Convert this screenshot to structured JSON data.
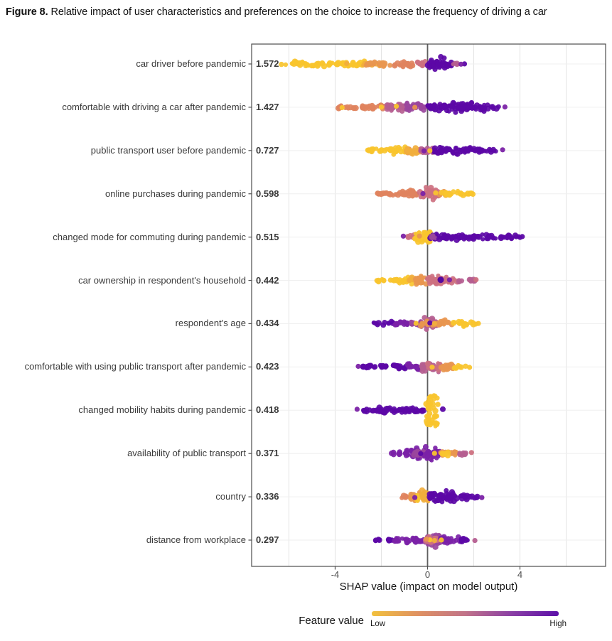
{
  "title": {
    "prefix": "Figure 8.",
    "text": " Relative impact of user characteristics and preferences on the choice to increase the frequency of driving a car"
  },
  "chart_data": {
    "type": "scatter",
    "subtype": "shap-beeswarm",
    "xlabel": "SHAP value (impact on model output)",
    "x_ticks": [
      "-4",
      "0",
      "4"
    ],
    "x_tick_values": [
      -4,
      0,
      4
    ],
    "x_range": [
      -7.6,
      7.7
    ],
    "zero_line": 0,
    "grid": true,
    "features": [
      {
        "label": "car driver before pandemic",
        "importance": "1.572",
        "segments": [
          [
            -6.35,
            -4.4,
            3.5,
            5,
            "YEL"
          ],
          [
            -4.4,
            -2.7,
            5,
            5.5,
            "YEL"
          ],
          [
            -2.85,
            -1.95,
            4,
            4,
            "YL2"
          ],
          [
            -2.7,
            -1.6,
            5,
            5,
            "ORN"
          ],
          [
            -1.6,
            -0.6,
            5,
            5,
            "SAL"
          ],
          [
            -0.6,
            -0.05,
            5,
            4.5,
            "PNK"
          ],
          [
            0.0,
            0.35,
            6,
            13,
            "PUR"
          ],
          [
            0.35,
            0.75,
            13,
            11,
            "PUR"
          ],
          [
            0.75,
            1.1,
            10,
            5,
            "PUR"
          ],
          [
            1.05,
            1.35,
            4,
            3,
            "MAU"
          ]
        ],
        "outliers": [
          [
            1.6,
            "PUR"
          ],
          [
            1.45,
            "PU2"
          ],
          [
            -3.5,
            "YL2"
          ]
        ]
      },
      {
        "label": "comfortable with driving a car after pandemic",
        "importance": "1.427",
        "segments": [
          [
            -3.85,
            -3.0,
            3,
            4.5,
            "SAL"
          ],
          [
            -3.0,
            -1.9,
            4.5,
            6,
            "SAL"
          ],
          [
            -1.9,
            -0.9,
            6,
            8.5,
            "MAU"
          ],
          [
            -0.9,
            -0.05,
            8.5,
            7,
            "MAG"
          ],
          [
            0.0,
            1.0,
            8,
            11,
            "PUR"
          ],
          [
            1.0,
            2.3,
            11,
            8,
            "PUR"
          ],
          [
            2.3,
            3.15,
            7,
            3,
            "PUR"
          ]
        ],
        "outliers": [
          [
            3.35,
            "PU2"
          ],
          [
            -3.7,
            "YEL"
          ],
          [
            -2.0,
            "YEL"
          ],
          [
            -0.55,
            "ORN"
          ],
          [
            -1.35,
            "YEL"
          ]
        ]
      },
      {
        "label": "public transport user before pandemic",
        "importance": "0.727",
        "segments": [
          [
            -2.6,
            -1.7,
            3,
            6,
            "YEL"
          ],
          [
            -1.7,
            -0.9,
            6,
            9,
            "YEL"
          ],
          [
            -1.0,
            -0.3,
            5,
            5,
            "ORN"
          ],
          [
            -0.9,
            -0.35,
            8,
            6,
            "YL2"
          ],
          [
            -0.35,
            0.25,
            6,
            6,
            "MAU"
          ],
          [
            0.25,
            1.3,
            7,
            8,
            "PUR"
          ],
          [
            1.3,
            2.3,
            8,
            6,
            "PUR"
          ],
          [
            2.3,
            3.1,
            5,
            2.5,
            "PUR"
          ]
        ],
        "outliers": [
          [
            3.25,
            "PU2"
          ],
          [
            0.1,
            "YEL"
          ],
          [
            -0.15,
            "PU2"
          ]
        ]
      },
      {
        "label": "online purchases during pandemic",
        "importance": "0.598",
        "segments": [
          [
            -2.2,
            -1.3,
            3,
            6,
            "SAL"
          ],
          [
            -1.3,
            -0.35,
            6,
            9,
            "SAL"
          ],
          [
            -0.35,
            0.15,
            9,
            12,
            "PNK"
          ],
          [
            0.15,
            0.6,
            12,
            8,
            "PNK"
          ],
          [
            0.5,
            0.95,
            5,
            5,
            "ORN"
          ],
          [
            0.6,
            1.15,
            6,
            5,
            "YEL"
          ],
          [
            1.15,
            2.15,
            5,
            3,
            "YEL"
          ]
        ],
        "outliers": [
          [
            -0.2,
            "PU2"
          ],
          [
            0.35,
            "YEL"
          ]
        ]
      },
      {
        "label": "changed mode for commuting during pandemic",
        "importance": "0.515",
        "segments": [
          [
            -0.88,
            -0.55,
            3,
            5,
            "PNK"
          ],
          [
            -0.55,
            -0.15,
            8,
            17,
            "YEL"
          ],
          [
            -0.15,
            0.12,
            17,
            14,
            "YEL"
          ],
          [
            0.12,
            0.5,
            8,
            6,
            "PUR"
          ],
          [
            0.18,
            0.45,
            5,
            5,
            "MAG"
          ],
          [
            0.5,
            2.6,
            6,
            6,
            "PUR"
          ],
          [
            2.6,
            4.05,
            5,
            3.5,
            "PUR"
          ]
        ],
        "outliers": [
          [
            -1.05,
            "PU2"
          ],
          [
            4.1,
            "PUR"
          ],
          [
            -0.35,
            "ORN"
          ]
        ]
      },
      {
        "label": "car ownership in respondent's household",
        "importance": "0.442",
        "segments": [
          [
            -2.2,
            -1.35,
            2.5,
            4.5,
            "YEL"
          ],
          [
            -1.35,
            -0.55,
            4.5,
            8,
            "YEL"
          ],
          [
            -0.8,
            -0.2,
            6,
            6,
            "YL2"
          ],
          [
            -0.55,
            -0.05,
            8,
            10,
            "ORN"
          ],
          [
            -0.05,
            0.55,
            11,
            9,
            "PNK"
          ],
          [
            0.55,
            1.3,
            7,
            4.5,
            "PNK"
          ],
          [
            1.3,
            2.05,
            4,
            2.5,
            "MAU"
          ]
        ],
        "outliers": [
          [
            0.57,
            "VIO",
            4.5
          ],
          [
            0.95,
            "PU2"
          ],
          [
            2.1,
            "PNK"
          ]
        ]
      },
      {
        "label": "respondent's age",
        "importance": "0.434",
        "segments": [
          [
            -2.4,
            -1.5,
            3,
            4,
            "PUR"
          ],
          [
            -1.5,
            -0.75,
            4,
            6,
            "PU2"
          ],
          [
            -0.75,
            -0.2,
            6,
            10,
            "MAG"
          ],
          [
            -0.2,
            0.45,
            11,
            11,
            "MAU"
          ],
          [
            -0.3,
            0.4,
            6,
            6,
            "ORN"
          ],
          [
            0.45,
            1.05,
            9,
            7,
            "ORN"
          ],
          [
            1.05,
            2.1,
            6,
            3,
            "YEL"
          ]
        ],
        "outliers": [
          [
            2.2,
            "YEL"
          ],
          [
            0.1,
            "PUR"
          ],
          [
            -0.5,
            "YEL"
          ],
          [
            0.3,
            "YL2"
          ]
        ]
      },
      {
        "label": "comfortable with using public transport after pandemic",
        "importance": "0.423",
        "segments": [
          [
            -2.95,
            -2.1,
            3,
            4.5,
            "PUR"
          ],
          [
            -2.1,
            -0.9,
            4.5,
            6,
            "PUR"
          ],
          [
            -0.9,
            -0.25,
            6,
            7,
            "PU2"
          ],
          [
            -0.25,
            0.5,
            9,
            13,
            "MAU"
          ],
          [
            0.0,
            0.55,
            7,
            7,
            "PNK"
          ],
          [
            0.5,
            1.15,
            9,
            6,
            "ORN"
          ],
          [
            1.15,
            1.7,
            5,
            3,
            "YEL"
          ]
        ],
        "outliers": [
          [
            1.82,
            "YEL"
          ],
          [
            -3.0,
            "PU2"
          ],
          [
            0.2,
            "YEL"
          ]
        ]
      },
      {
        "label": "changed mobility habits during pandemic",
        "importance": "0.418",
        "segments": [
          [
            -2.95,
            -2.2,
            3,
            4.5,
            "PUR"
          ],
          [
            -2.2,
            -0.7,
            5,
            7,
            "PUR"
          ],
          [
            -0.7,
            -0.12,
            6,
            5,
            "PUR"
          ],
          [
            -0.08,
            0.45,
            22,
            23,
            "YEL",
            "u"
          ]
        ],
        "outliers": [
          [
            0.66,
            "PUR",
            4
          ],
          [
            -3.05,
            "PU2"
          ]
        ]
      },
      {
        "label": "availability of public transport",
        "importance": "0.371",
        "segments": [
          [
            -1.6,
            -0.9,
            3,
            6,
            "PU2"
          ],
          [
            -0.9,
            -0.15,
            8,
            13,
            "PU2"
          ],
          [
            -0.6,
            0.1,
            7,
            7,
            "MAG"
          ],
          [
            -0.15,
            0.55,
            13,
            9,
            "PU2"
          ],
          [
            0.55,
            1.25,
            6,
            5,
            "ORN"
          ],
          [
            0.6,
            1.0,
            4,
            4,
            "YEL"
          ],
          [
            1.25,
            1.8,
            4,
            3,
            "MAU"
          ]
        ],
        "outliers": [
          [
            1.9,
            "PNK"
          ],
          [
            0.3,
            "YEL"
          ],
          [
            -0.3,
            "PUR"
          ]
        ]
      },
      {
        "label": "country",
        "importance": "0.336",
        "segments": [
          [
            -1.15,
            -0.75,
            3,
            5,
            "SAL"
          ],
          [
            -0.75,
            -0.3,
            6,
            10,
            "ORN"
          ],
          [
            -0.5,
            0.0,
            8,
            8,
            "YEL"
          ],
          [
            -0.3,
            0.05,
            12,
            13,
            "YL2"
          ],
          [
            0.0,
            1.05,
            10,
            11,
            "PUR"
          ],
          [
            1.05,
            1.75,
            9,
            4,
            "PUR"
          ],
          [
            1.75,
            2.25,
            3,
            2.5,
            "PUR"
          ]
        ],
        "outliers": [
          [
            2.35,
            "PU2"
          ],
          [
            -0.55,
            "PU2"
          ]
        ]
      },
      {
        "label": "distance from workplace",
        "importance": "0.297",
        "segments": [
          [
            -2.4,
            -1.5,
            3,
            4,
            "PUR"
          ],
          [
            -1.5,
            -0.7,
            4,
            5.5,
            "PU2"
          ],
          [
            -0.7,
            -0.15,
            6,
            9,
            "PU2"
          ],
          [
            -0.15,
            0.55,
            12,
            11,
            "MAG"
          ],
          [
            -0.2,
            0.5,
            7,
            7,
            "PNK"
          ],
          [
            0.55,
            1.4,
            7,
            5,
            "PU2"
          ],
          [
            1.4,
            2.0,
            4,
            2.5,
            "PUR"
          ]
        ],
        "outliers": [
          [
            0.1,
            "YEL"
          ],
          [
            0.3,
            "YL2"
          ],
          [
            -0.05,
            "ORN"
          ],
          [
            2.05,
            "MAU"
          ],
          [
            0.6,
            "YEL"
          ]
        ]
      }
    ],
    "legend": {
      "title": "Feature value",
      "low": "Low",
      "high": "High",
      "gradient": [
        "#F2C13D",
        "#DF9162",
        "#C17389",
        "#8A3FA5",
        "#5C10A8"
      ],
      "position": "bottom"
    }
  },
  "colors": {
    "palette": {
      "YEL": "#F9C42E",
      "YL2": "#F1AE3D",
      "ORN": "#E8964F",
      "SAL": "#DF835E",
      "PNK": "#CD7080",
      "MAU": "#B55E90",
      "MAG": "#9A479D",
      "PU2": "#7B22A7",
      "PUR": "#5C08A6",
      "VIO": "#4E03A0"
    },
    "panel_border": "#4E4E4E",
    "grid_vertical": "#E3E3E3",
    "grid_horizontal": "#EFEFEF",
    "zero_line": "#5E5E5E",
    "tick": "#4E4E4E",
    "tick_label": "#4D4D4D"
  }
}
